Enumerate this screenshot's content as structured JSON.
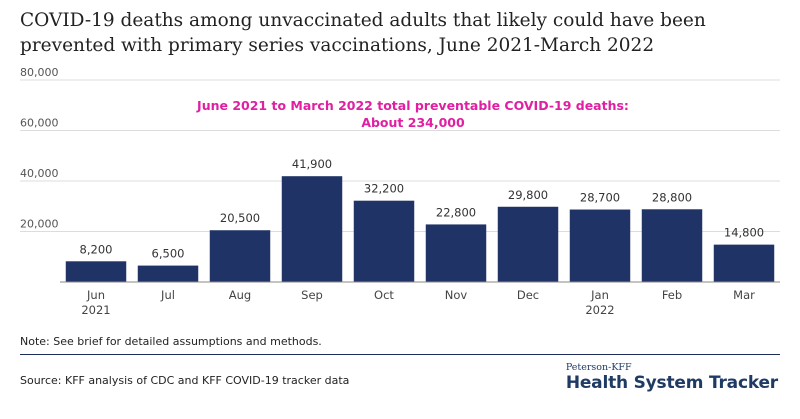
{
  "chart_data": {
    "type": "bar",
    "title": "COVID-19 deaths among unvaccinated adults that likely could have been prevented with primary series vaccinations, June 2021-March 2022",
    "categories": [
      "Jun",
      "Jul",
      "Aug",
      "Sep",
      "Oct",
      "Nov",
      "Dec",
      "Jan",
      "Feb",
      "Mar"
    ],
    "category_sublabels": [
      "2021",
      "",
      "",
      "",
      "",
      "",
      "",
      "2022",
      "",
      ""
    ],
    "values": [
      8200,
      6500,
      20500,
      41900,
      32200,
      22800,
      29800,
      28700,
      28800,
      14800
    ],
    "value_labels": [
      "8,200",
      "6,500",
      "20,500",
      "41,900",
      "32,200",
      "22,800",
      "29,800",
      "28,700",
      "28,800",
      "14,800"
    ],
    "ylim": [
      0,
      80000
    ],
    "yticks": [
      20000,
      40000,
      60000,
      80000
    ],
    "ytick_labels": [
      "20,000",
      "40,000",
      "60,000",
      "80,000"
    ],
    "xlabel": "",
    "ylabel": "",
    "grid": true,
    "annotation": {
      "line1": "June 2021 to March 2022 total preventable COVID-19 deaths:",
      "line2": "About 234,000",
      "color": "#e01fa3"
    },
    "bar_color": "#1f3366"
  },
  "footer": {
    "note": "Note: See brief for detailed assumptions and methods.",
    "source": "Source: KFF analysis of CDC and KFF COVID-19 tracker data",
    "logo_small": "Peterson-KFF",
    "logo_big": "Health System Tracker",
    "rule_color": "#1f2d5c"
  }
}
